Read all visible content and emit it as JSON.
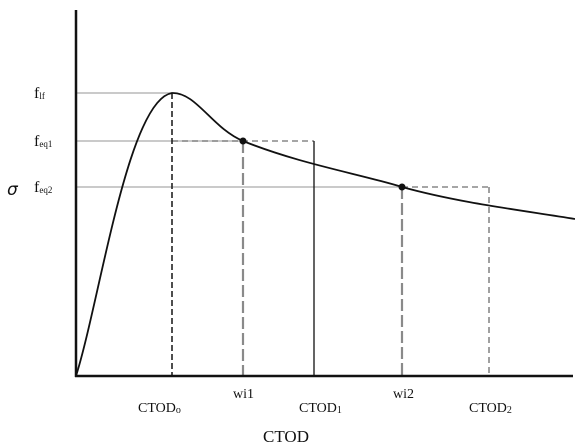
{
  "diagram": {
    "y_axis_symbol": "σ",
    "x_axis_label": "CTOD",
    "y_levels": [
      {
        "name": "f-lf",
        "label_main": "f",
        "label_sub": "lf"
      },
      {
        "name": "f-eq1",
        "label_main": "f",
        "label_sub": "eq1"
      },
      {
        "name": "f-eq2",
        "label_main": "f",
        "label_sub": "eq2"
      }
    ],
    "x_markers": [
      {
        "name": "ctod-0",
        "label_main": "CTOD",
        "label_sub": "o"
      },
      {
        "name": "wi1",
        "label_main": "wi1",
        "label_sub": ""
      },
      {
        "name": "ctod-1",
        "label_main": "CTOD",
        "label_sub": "1"
      },
      {
        "name": "wi2",
        "label_main": "wi2",
        "label_sub": ""
      },
      {
        "name": "ctod-2",
        "label_main": "CTOD",
        "label_sub": "2"
      }
    ],
    "colors": {
      "curve": "#111111",
      "axis": "#111111",
      "guide_line": "#b9b9b9",
      "dash_dark": "#222222",
      "dash_light": "#888888"
    }
  }
}
